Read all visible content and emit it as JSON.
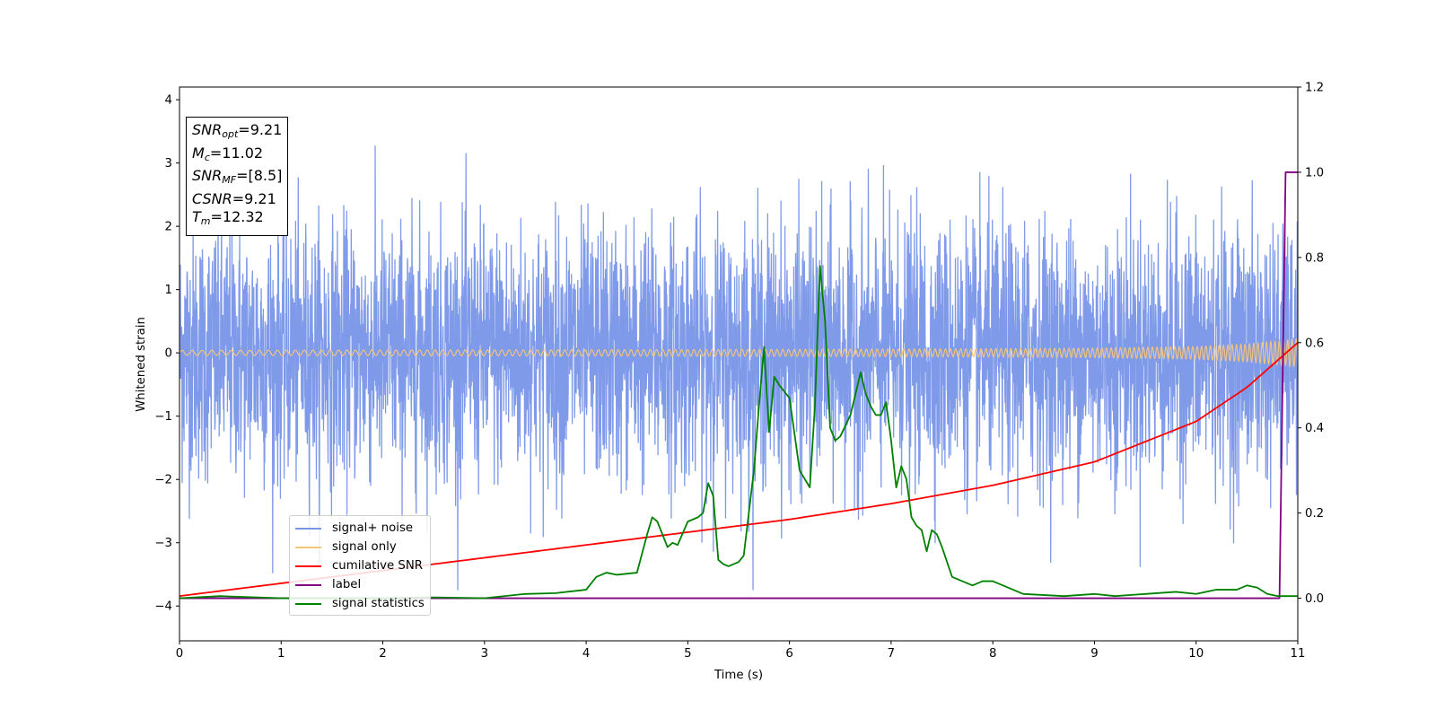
{
  "chart_data": {
    "type": "line",
    "xlabel": "Time (s)",
    "ylabel": "Whitened strain",
    "xlim": [
      0,
      11
    ],
    "ylim_left": [
      -4.55,
      4.2
    ],
    "ylim_right": [
      -0.1,
      1.2
    ],
    "x_ticks": [
      "0",
      "1",
      "2",
      "3",
      "4",
      "5",
      "6",
      "7",
      "8",
      "9",
      "10",
      "11"
    ],
    "y_left_ticks": [
      "4",
      "3",
      "2",
      "1",
      "0",
      "−1",
      "−2",
      "−3",
      "−4"
    ],
    "y_right_ticks": [
      "1.2",
      "1.0",
      "0.8",
      "0.6",
      "0.4",
      "0.2",
      "0.0"
    ],
    "grid": false,
    "legend_position": "lower-left",
    "series": [
      {
        "name": "signal+ noise",
        "color": "#7895e8",
        "axis": "left",
        "description_values": "gaussian whitened noise, amplitude about ±2 with spikes to about ±3.8, 0 ≤ t ≤ 11"
      },
      {
        "name": "signal only",
        "color": "#f5c57a",
        "axis": "left",
        "envelope_t": [
          0,
          2,
          4,
          6,
          8,
          9,
          10,
          10.5,
          11
        ],
        "envelope_a": [
          0.04,
          0.045,
          0.05,
          0.055,
          0.065,
          0.075,
          0.1,
          0.14,
          0.22
        ]
      },
      {
        "name": "cumilative SNR",
        "color": "#ff0000",
        "axis": "right",
        "t": [
          0,
          1,
          2,
          3,
          4,
          5,
          6,
          7,
          8,
          9,
          10,
          10.5,
          11
        ],
        "values": [
          0.005,
          0.035,
          0.065,
          0.095,
          0.125,
          0.155,
          0.185,
          0.222,
          0.265,
          0.32,
          0.415,
          0.495,
          0.6
        ]
      },
      {
        "name": "label",
        "color": "#800080",
        "axis": "right",
        "t": [
          0,
          10.82,
          10.88,
          11
        ],
        "values": [
          0.0,
          0.0,
          1.0,
          1.0
        ]
      },
      {
        "name": "signal statistics",
        "color": "#008000",
        "axis": "right",
        "t": [
          0,
          0.4,
          1.0,
          1.5,
          2.0,
          2.5,
          3.0,
          3.4,
          3.7,
          4.0,
          4.1,
          4.2,
          4.3,
          4.5,
          4.6,
          4.65,
          4.7,
          4.75,
          4.8,
          4.85,
          4.9,
          5.0,
          5.1,
          5.15,
          5.2,
          5.25,
          5.3,
          5.35,
          5.4,
          5.45,
          5.5,
          5.55,
          5.6,
          5.65,
          5.7,
          5.75,
          5.8,
          5.85,
          5.9,
          6.0,
          6.1,
          6.2,
          6.25,
          6.3,
          6.35,
          6.4,
          6.45,
          6.5,
          6.6,
          6.7,
          6.75,
          6.8,
          6.85,
          6.9,
          6.95,
          7.0,
          7.05,
          7.1,
          7.15,
          7.2,
          7.25,
          7.3,
          7.35,
          7.4,
          7.45,
          7.5,
          7.6,
          7.7,
          7.8,
          7.9,
          8.0,
          8.3,
          8.7,
          9.0,
          9.2,
          9.5,
          9.8,
          10.0,
          10.2,
          10.4,
          10.5,
          10.6,
          10.7,
          10.8,
          11
        ],
        "values": [
          0.0,
          0.005,
          0.0,
          0.0,
          0.0,
          0.002,
          0.0,
          0.01,
          0.012,
          0.02,
          0.05,
          0.06,
          0.055,
          0.06,
          0.15,
          0.19,
          0.18,
          0.15,
          0.12,
          0.13,
          0.125,
          0.18,
          0.19,
          0.2,
          0.27,
          0.24,
          0.09,
          0.08,
          0.075,
          0.08,
          0.085,
          0.1,
          0.2,
          0.3,
          0.45,
          0.59,
          0.39,
          0.52,
          0.5,
          0.47,
          0.3,
          0.26,
          0.45,
          0.78,
          0.65,
          0.4,
          0.37,
          0.38,
          0.43,
          0.53,
          0.48,
          0.45,
          0.43,
          0.43,
          0.46,
          0.37,
          0.26,
          0.31,
          0.28,
          0.19,
          0.17,
          0.16,
          0.11,
          0.16,
          0.15,
          0.12,
          0.05,
          0.04,
          0.03,
          0.04,
          0.04,
          0.01,
          0.005,
          0.01,
          0.005,
          0.01,
          0.015,
          0.01,
          0.02,
          0.02,
          0.03,
          0.025,
          0.01,
          0.005,
          0.005
        ]
      }
    ],
    "annotation": {
      "snr_opt": "9.21",
      "mc": "11.02",
      "snr_mf": "[8.5]",
      "csnr": "9.21",
      "tm": "12.32"
    }
  },
  "legend": {
    "items": [
      "signal+ noise",
      "signal only",
      "cumilative SNR",
      "label",
      "signal statistics"
    ]
  }
}
